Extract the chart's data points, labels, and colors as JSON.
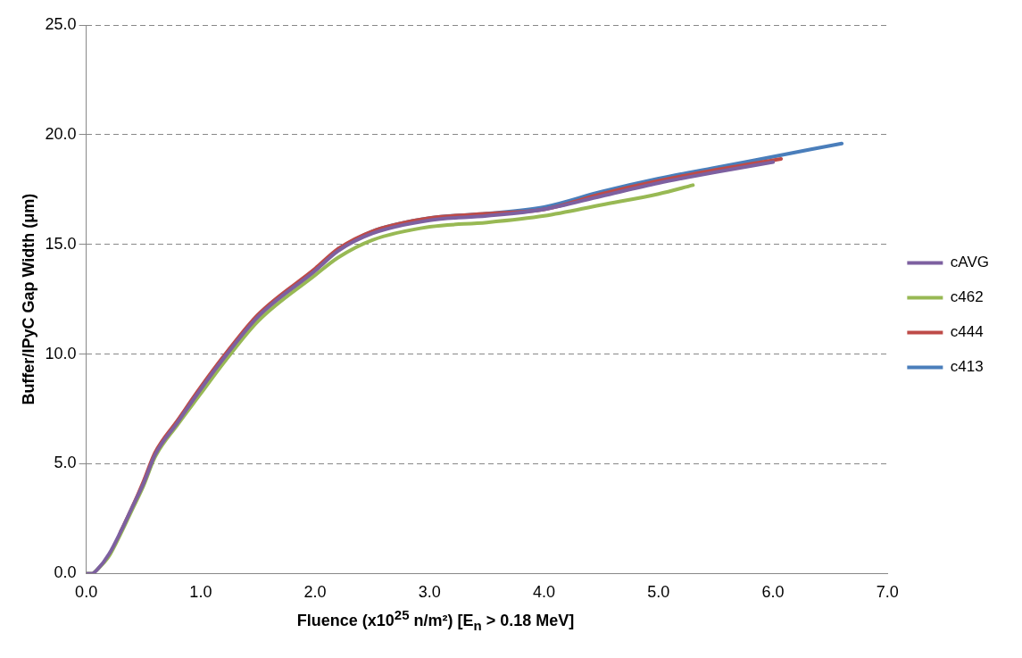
{
  "chart_data": {
    "type": "line",
    "xlabel": "Fluence (x10$^{25}$ n/m²) [E$_{n}$ > 0.18 MeV]",
    "ylabel": "Buffer/IPyC Gap Width (μm)",
    "xlim": [
      0,
      7
    ],
    "xticks": [
      {
        "value": 0,
        "label": "0.0"
      },
      {
        "value": 1,
        "label": "1.0"
      },
      {
        "value": 2,
        "label": "2.0"
      },
      {
        "value": 3,
        "label": "3.0"
      },
      {
        "value": 4,
        "label": "4.0"
      },
      {
        "value": 5,
        "label": "5.0"
      },
      {
        "value": 6,
        "label": "6.0"
      },
      {
        "value": 7,
        "label": "7.0"
      }
    ],
    "ylim": [
      0,
      25
    ],
    "yticks": [
      {
        "value": 0,
        "label": "0.0"
      },
      {
        "value": 5,
        "label": "5.0"
      },
      {
        "value": 10,
        "label": "10.0"
      },
      {
        "value": 15,
        "label": "15.0"
      },
      {
        "value": 20,
        "label": "20.0"
      },
      {
        "value": 25,
        "label": "25.0"
      }
    ],
    "grid": "y",
    "legend": "right",
    "marker": "none",
    "line_style": "solid",
    "series": [
      {
        "name": "c413",
        "color": "#4a7ebb",
        "x": [
          2.2,
          2.5,
          3.0,
          3.5,
          4.0,
          4.5,
          5.0,
          5.5,
          6.0,
          6.6
        ],
        "values": [
          14.8,
          15.6,
          16.2,
          16.4,
          16.7,
          17.4,
          18.0,
          18.5,
          19.0,
          19.6
        ]
      },
      {
        "name": "c444",
        "color": "#be4b48",
        "x": [
          0.3,
          0.4,
          0.5,
          0.6,
          0.8,
          1.0,
          1.2,
          1.5,
          2.0,
          2.2,
          2.5,
          3.0,
          3.5,
          4.0,
          4.5,
          5.0,
          5.5,
          6.07
        ],
        "values": [
          1.9,
          3.0,
          4.2,
          5.5,
          7.0,
          8.5,
          9.9,
          11.8,
          13.9,
          14.8,
          15.6,
          16.2,
          16.4,
          16.6,
          17.3,
          17.9,
          18.4,
          18.9
        ]
      },
      {
        "name": "c462",
        "color": "#98b954",
        "x": [
          0,
          0.05,
          0.1,
          0.2,
          0.3,
          0.4,
          0.5,
          0.6,
          0.8,
          1.0,
          1.2,
          1.5,
          2.0,
          2.2,
          2.5,
          3.0,
          3.5,
          4.0,
          4.5,
          5.0,
          5.3
        ],
        "values": [
          0,
          0,
          0.2,
          0.8,
          1.8,
          2.9,
          4.0,
          5.3,
          6.8,
          8.2,
          9.6,
          11.5,
          13.6,
          14.4,
          15.2,
          15.8,
          16.0,
          16.3,
          16.8,
          17.3,
          17.7
        ]
      },
      {
        "name": "cAVG",
        "color": "#7d60a0",
        "x": [
          0,
          0.05,
          0.1,
          0.2,
          0.3,
          0.4,
          0.5,
          0.6,
          0.8,
          1.0,
          1.2,
          1.5,
          2.0,
          2.2,
          2.5,
          3.0,
          3.5,
          4.0,
          4.5,
          5.0,
          5.5,
          6.0
        ],
        "values": [
          0,
          0,
          0.2,
          0.9,
          1.9,
          3.0,
          4.1,
          5.4,
          6.9,
          8.4,
          9.8,
          11.7,
          13.8,
          14.7,
          15.5,
          16.1,
          16.3,
          16.6,
          17.2,
          17.8,
          18.3,
          18.75
        ]
      }
    ]
  }
}
